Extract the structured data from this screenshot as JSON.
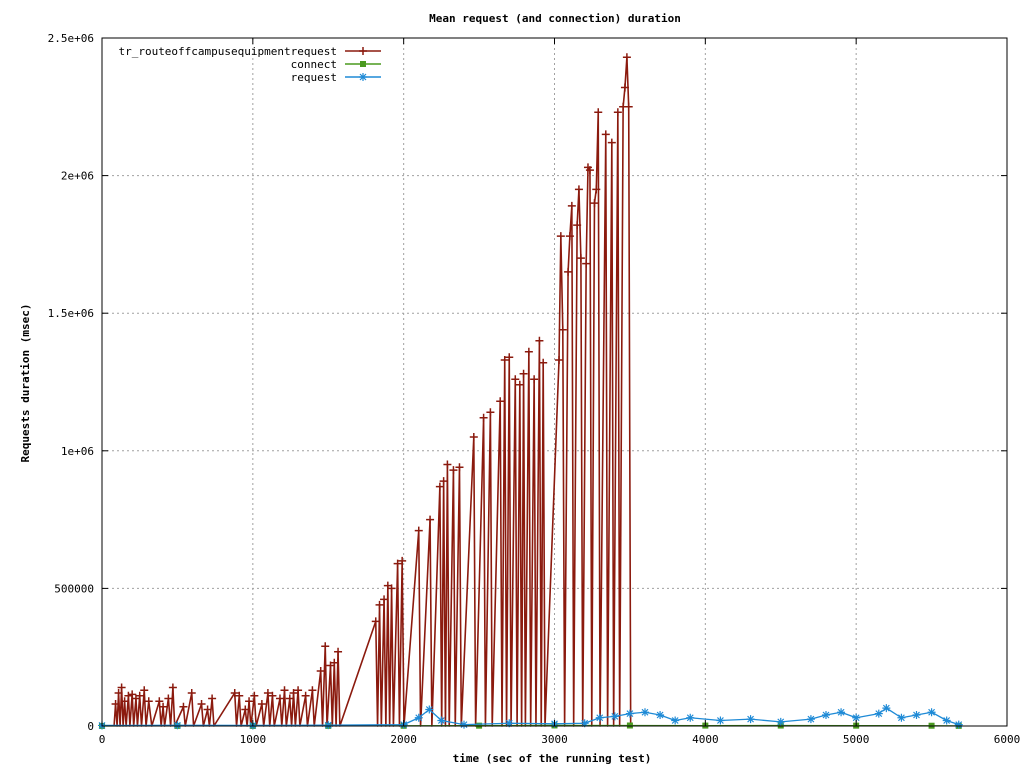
{
  "chart_data": {
    "type": "line",
    "title": "Mean request (and connection) duration",
    "xlabel": "time (sec of the running test)",
    "ylabel": "Requests duration (msec)",
    "xlim": [
      0,
      6000
    ],
    "ylim": [
      0,
      2500000
    ],
    "x_ticks": [
      0,
      1000,
      2000,
      3000,
      4000,
      5000,
      6000
    ],
    "x_tick_labels": [
      "0",
      "1000",
      "2000",
      "3000",
      "4000",
      "5000",
      "6000"
    ],
    "y_ticks": [
      0,
      500000,
      1000000,
      1500000,
      2000000,
      2500000
    ],
    "y_tick_labels": [
      "0",
      "500000",
      "1e+06",
      "1.5e+06",
      "2e+06",
      "2.5e+06"
    ],
    "grid": true,
    "legend_position": "top-left",
    "series": [
      {
        "name": "tr_routeoffcampusequipmentrequest",
        "color": "#8b1a0e",
        "marker": "plus",
        "points": [
          [
            80,
            0
          ],
          [
            90,
            80000
          ],
          [
            100,
            0
          ],
          [
            110,
            120000
          ],
          [
            120,
            0
          ],
          [
            130,
            140000
          ],
          [
            140,
            0
          ],
          [
            150,
            90000
          ],
          [
            160,
            0
          ],
          [
            175,
            110000
          ],
          [
            185,
            0
          ],
          [
            200,
            115000
          ],
          [
            210,
            0
          ],
          [
            225,
            100000
          ],
          [
            235,
            0
          ],
          [
            250,
            110000
          ],
          [
            262,
            0
          ],
          [
            280,
            130000
          ],
          [
            292,
            0
          ],
          [
            310,
            90000
          ],
          [
            330,
            0
          ],
          [
            380,
            90000
          ],
          [
            392,
            0
          ],
          [
            405,
            70000
          ],
          [
            415,
            0
          ],
          [
            440,
            100000
          ],
          [
            455,
            0
          ],
          [
            470,
            140000
          ],
          [
            482,
            0
          ],
          [
            540,
            70000
          ],
          [
            552,
            0
          ],
          [
            595,
            120000
          ],
          [
            607,
            0
          ],
          [
            660,
            80000
          ],
          [
            672,
            0
          ],
          [
            700,
            60000
          ],
          [
            712,
            0
          ],
          [
            730,
            100000
          ],
          [
            742,
            0
          ],
          [
            880,
            120000
          ],
          [
            892,
            0
          ],
          [
            910,
            110000
          ],
          [
            922,
            0
          ],
          [
            950,
            60000
          ],
          [
            962,
            0
          ],
          [
            975,
            90000
          ],
          [
            987,
            0
          ],
          [
            1010,
            110000
          ],
          [
            1022,
            0
          ],
          [
            1060,
            80000
          ],
          [
            1072,
            0
          ],
          [
            1100,
            120000
          ],
          [
            1112,
            0
          ],
          [
            1130,
            110000
          ],
          [
            1142,
            0
          ],
          [
            1180,
            100000
          ],
          [
            1192,
            0
          ],
          [
            1210,
            130000
          ],
          [
            1222,
            0
          ],
          [
            1245,
            100000
          ],
          [
            1257,
            0
          ],
          [
            1270,
            120000
          ],
          [
            1282,
            0
          ],
          [
            1300,
            130000
          ],
          [
            1312,
            0
          ],
          [
            1350,
            110000
          ],
          [
            1362,
            0
          ],
          [
            1395,
            130000
          ],
          [
            1407,
            0
          ],
          [
            1450,
            200000
          ],
          [
            1462,
            0
          ],
          [
            1480,
            290000
          ],
          [
            1492,
            0
          ],
          [
            1515,
            220000
          ],
          [
            1527,
            0
          ],
          [
            1540,
            230000
          ],
          [
            1552,
            0
          ],
          [
            1565,
            270000
          ],
          [
            1577,
            0
          ],
          [
            1815,
            380000
          ],
          [
            1827,
            0
          ],
          [
            1840,
            440000
          ],
          [
            1852,
            0
          ],
          [
            1870,
            460000
          ],
          [
            1882,
            0
          ],
          [
            1895,
            510000
          ],
          [
            1907,
            0
          ],
          [
            1920,
            500000
          ],
          [
            1932,
            0
          ],
          [
            1960,
            590000
          ],
          [
            1972,
            0
          ],
          [
            1990,
            600000
          ],
          [
            2002,
            0
          ],
          [
            2100,
            710000
          ],
          [
            2112,
            0
          ],
          [
            2175,
            750000
          ],
          [
            2187,
            0
          ],
          [
            2240,
            870000
          ],
          [
            2252,
            0
          ],
          [
            2265,
            890000
          ],
          [
            2277,
            0
          ],
          [
            2290,
            950000
          ],
          [
            2302,
            0
          ],
          [
            2330,
            930000
          ],
          [
            2342,
            0
          ],
          [
            2370,
            940000
          ],
          [
            2382,
            0
          ],
          [
            2465,
            1050000
          ],
          [
            2477,
            0
          ],
          [
            2530,
            1120000
          ],
          [
            2542,
            0
          ],
          [
            2575,
            1140000
          ],
          [
            2587,
            0
          ],
          [
            2640,
            1180000
          ],
          [
            2652,
            0
          ],
          [
            2670,
            1330000
          ],
          [
            2682,
            0
          ],
          [
            2700,
            1340000
          ],
          [
            2712,
            0
          ],
          [
            2740,
            1260000
          ],
          [
            2752,
            0
          ],
          [
            2770,
            1240000
          ],
          [
            2782,
            0
          ],
          [
            2795,
            1280000
          ],
          [
            2807,
            0
          ],
          [
            2830,
            1360000
          ],
          [
            2842,
            0
          ],
          [
            2865,
            1260000
          ],
          [
            2877,
            0
          ],
          [
            2900,
            1400000
          ],
          [
            2912,
            0
          ],
          [
            2925,
            1320000
          ],
          [
            2937,
            0
          ],
          [
            3030,
            1330000
          ],
          [
            3042,
            1780000
          ],
          [
            3055,
            1440000
          ],
          [
            3067,
            0
          ],
          [
            3090,
            1650000
          ],
          [
            3102,
            1780000
          ],
          [
            3115,
            1890000
          ],
          [
            3127,
            0
          ],
          [
            3150,
            1820000
          ],
          [
            3162,
            1950000
          ],
          [
            3175,
            1700000
          ],
          [
            3187,
            0
          ],
          [
            3210,
            1680000
          ],
          [
            3222,
            2030000
          ],
          [
            3235,
            2020000
          ],
          [
            3247,
            0
          ],
          [
            3265,
            1900000
          ],
          [
            3277,
            1950000
          ],
          [
            3290,
            2230000
          ],
          [
            3302,
            0
          ],
          [
            3340,
            2150000
          ],
          [
            3352,
            0
          ],
          [
            3380,
            2120000
          ],
          [
            3392,
            0
          ],
          [
            3420,
            2230000
          ],
          [
            3432,
            0
          ],
          [
            3455,
            2250000
          ],
          [
            3467,
            2320000
          ],
          [
            3480,
            2430000
          ],
          [
            3492,
            2250000
          ],
          [
            3505,
            0
          ]
        ]
      },
      {
        "name": "connect",
        "color": "#4a9a1f",
        "marker": "filled-square",
        "points": [
          [
            0,
            300
          ],
          [
            500,
            400
          ],
          [
            1000,
            350
          ],
          [
            1500,
            500
          ],
          [
            2000,
            800
          ],
          [
            2500,
            1200
          ],
          [
            3000,
            2000
          ],
          [
            3500,
            1800
          ],
          [
            4000,
            1500
          ],
          [
            4500,
            1600
          ],
          [
            5000,
            1300
          ],
          [
            5500,
            1000
          ],
          [
            5680,
            500
          ]
        ]
      },
      {
        "name": "request",
        "color": "#1e8ad6",
        "marker": "star",
        "points": [
          [
            0,
            2000
          ],
          [
            500,
            2500
          ],
          [
            1000,
            2000
          ],
          [
            1500,
            3000
          ],
          [
            2000,
            5000
          ],
          [
            2100,
            30000
          ],
          [
            2170,
            60000
          ],
          [
            2250,
            20000
          ],
          [
            2400,
            5000
          ],
          [
            2700,
            10000
          ],
          [
            3000,
            8000
          ],
          [
            3200,
            10000
          ],
          [
            3300,
            30000
          ],
          [
            3400,
            35000
          ],
          [
            3500,
            45000
          ],
          [
            3600,
            50000
          ],
          [
            3700,
            40000
          ],
          [
            3800,
            20000
          ],
          [
            3900,
            30000
          ],
          [
            4100,
            20000
          ],
          [
            4300,
            25000
          ],
          [
            4500,
            15000
          ],
          [
            4700,
            25000
          ],
          [
            4800,
            40000
          ],
          [
            4900,
            50000
          ],
          [
            5000,
            30000
          ],
          [
            5150,
            45000
          ],
          [
            5200,
            65000
          ],
          [
            5300,
            30000
          ],
          [
            5400,
            40000
          ],
          [
            5500,
            50000
          ],
          [
            5600,
            20000
          ],
          [
            5680,
            5000
          ]
        ]
      }
    ]
  }
}
